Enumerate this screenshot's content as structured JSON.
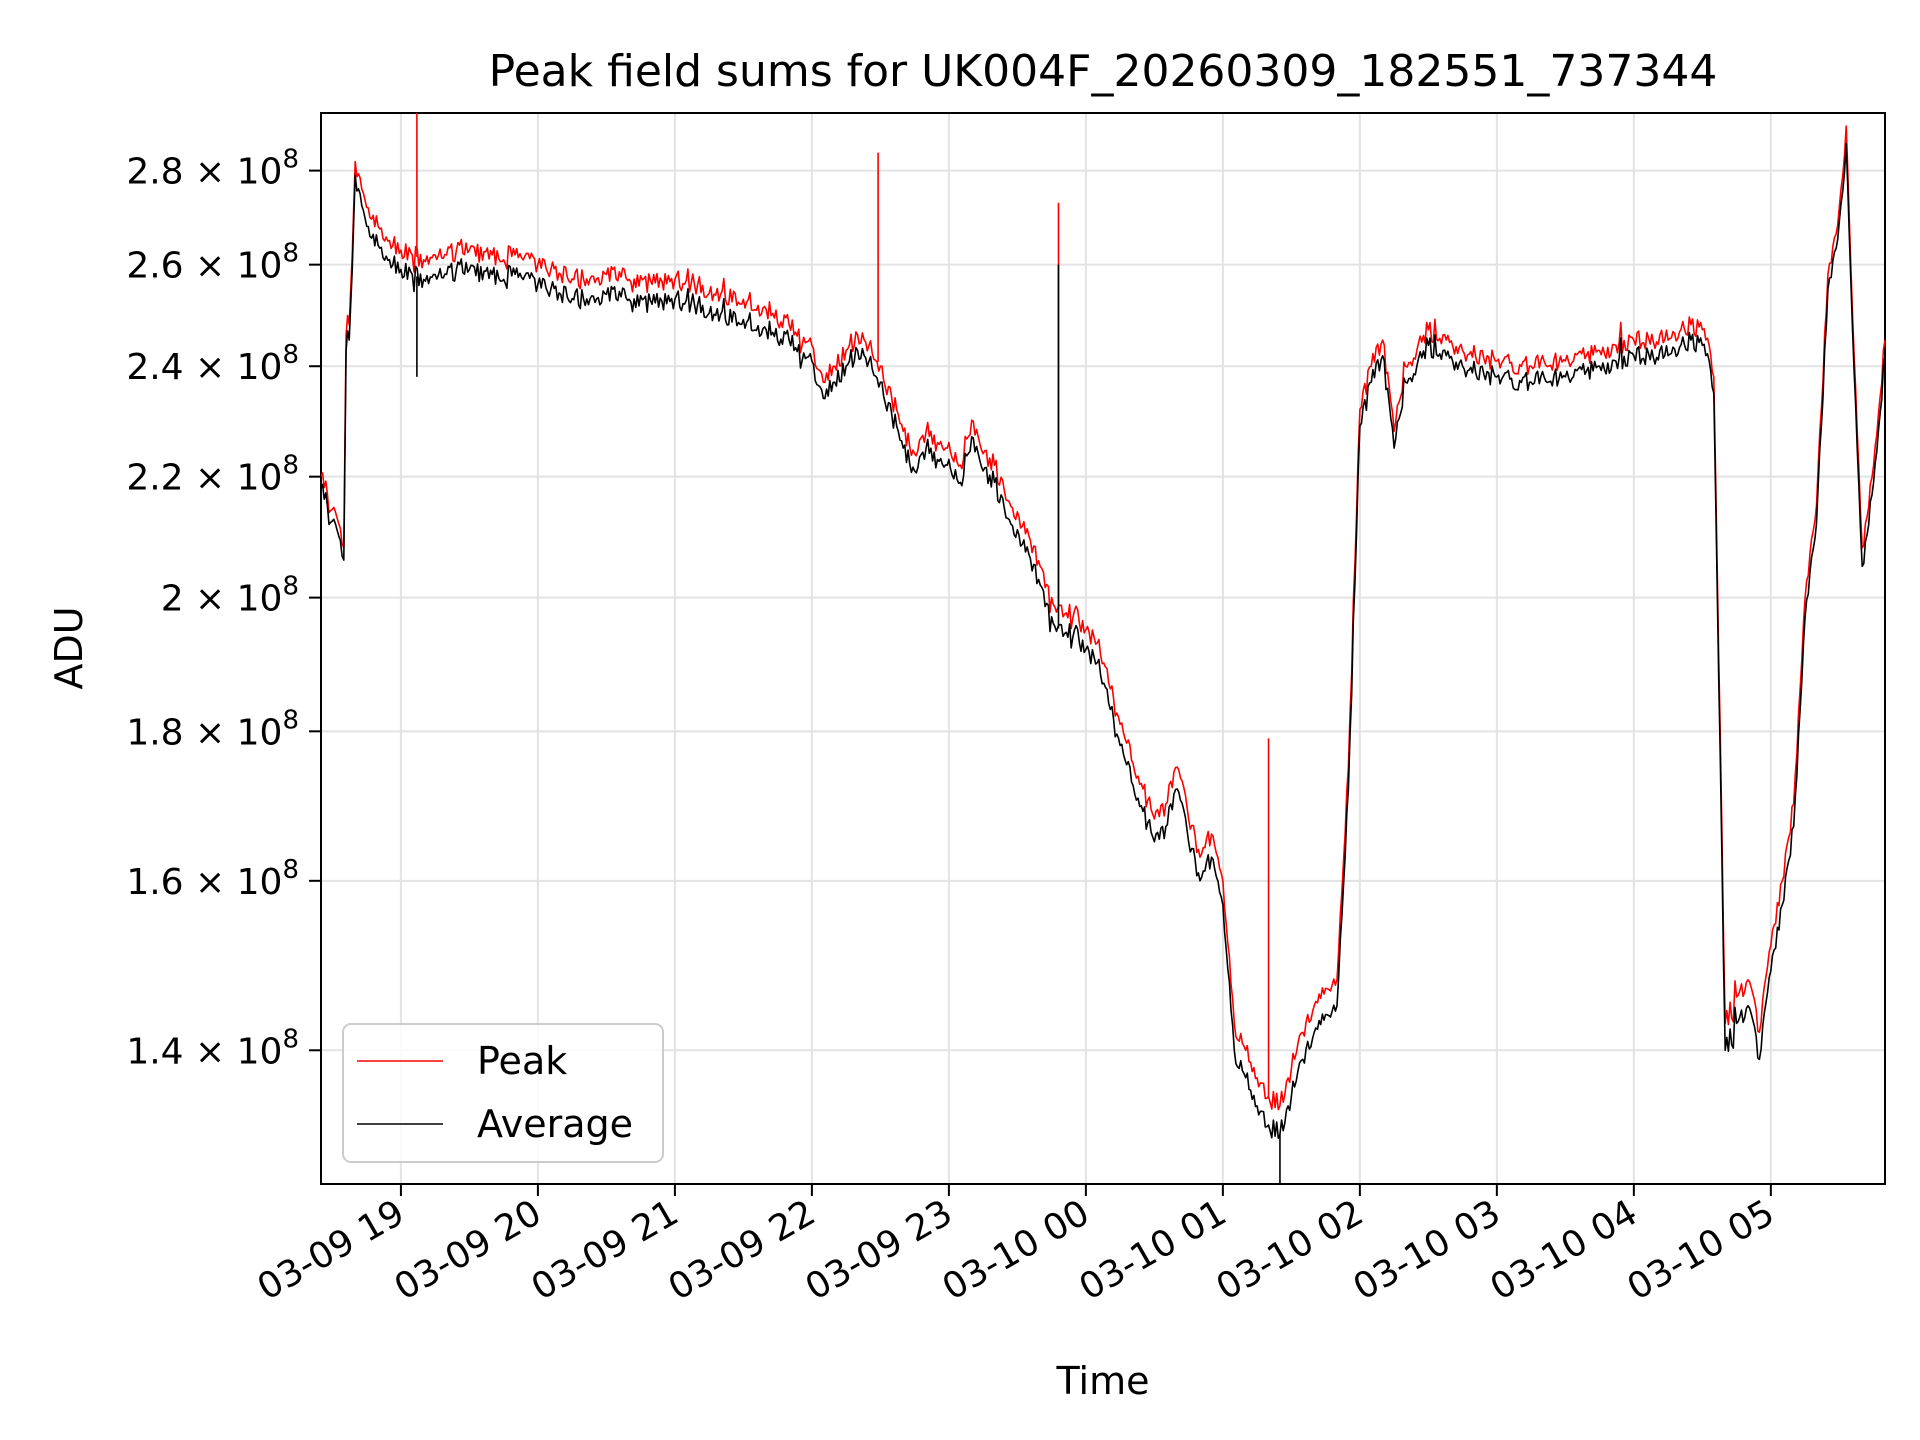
{
  "chart_data": {
    "type": "line",
    "title": "Peak field sums for UK004F_20260309_182551_737344",
    "xlabel": "Time",
    "ylabel": "ADU",
    "y_scale": "log",
    "grid": true,
    "legend_position": "lower-left",
    "xlim": [
      "2026-03-09 18:25",
      "2026-03-10 05:50"
    ],
    "ylim": [
      126000000,
      293000000
    ],
    "x_ticks": [
      {
        "value": "2026-03-09 19:00",
        "label": "03-09 19"
      },
      {
        "value": "2026-03-09 20:00",
        "label": "03-09 20"
      },
      {
        "value": "2026-03-09 21:00",
        "label": "03-09 21"
      },
      {
        "value": "2026-03-09 22:00",
        "label": "03-09 22"
      },
      {
        "value": "2026-03-09 23:00",
        "label": "03-09 23"
      },
      {
        "value": "2026-03-10 00:00",
        "label": "03-10 00"
      },
      {
        "value": "2026-03-10 01:00",
        "label": "03-10 01"
      },
      {
        "value": "2026-03-10 02:00",
        "label": "03-10 02"
      },
      {
        "value": "2026-03-10 03:00",
        "label": "03-10 03"
      },
      {
        "value": "2026-03-10 04:00",
        "label": "03-10 04"
      },
      {
        "value": "2026-03-10 05:00",
        "label": "03-10 05"
      }
    ],
    "y_ticks": [
      {
        "value": 140000000,
        "mantissa": "1.4",
        "base": "10",
        "exp": "8"
      },
      {
        "value": 160000000,
        "mantissa": "1.6",
        "base": "10",
        "exp": "8"
      },
      {
        "value": 180000000,
        "mantissa": "1.8",
        "base": "10",
        "exp": "8"
      },
      {
        "value": 200000000,
        "mantissa": "2",
        "base": "10",
        "exp": "8"
      },
      {
        "value": 220000000,
        "mantissa": "2.2",
        "base": "10",
        "exp": "8"
      },
      {
        "value": 240000000,
        "mantissa": "2.4",
        "base": "10",
        "exp": "8"
      },
      {
        "value": 260000000,
        "mantissa": "2.6",
        "base": "10",
        "exp": "8"
      },
      {
        "value": 280000000,
        "mantissa": "2.8",
        "base": "10",
        "exp": "8"
      }
    ],
    "series": [
      {
        "name": "Peak",
        "color": "#ff0000",
        "x": [
          "2026-03-09 18:25",
          "2026-03-09 18:32",
          "2026-03-09 18:35",
          "2026-03-09 18:36",
          "2026-03-09 18:38",
          "2026-03-09 18:40",
          "2026-03-09 18:45",
          "2026-03-09 18:50",
          "2026-03-09 18:55",
          "2026-03-09 19:00",
          "2026-03-09 19:05",
          "2026-03-09 19:10",
          "2026-03-09 19:20",
          "2026-03-09 19:30",
          "2026-03-09 19:40",
          "2026-03-09 19:50",
          "2026-03-09 20:00",
          "2026-03-09 20:10",
          "2026-03-09 20:20",
          "2026-03-09 20:30",
          "2026-03-09 20:40",
          "2026-03-09 20:50",
          "2026-03-09 21:00",
          "2026-03-09 21:10",
          "2026-03-09 21:20",
          "2026-03-09 21:30",
          "2026-03-09 21:40",
          "2026-03-09 21:50",
          "2026-03-09 22:00",
          "2026-03-09 22:05",
          "2026-03-09 22:10",
          "2026-03-09 22:15",
          "2026-03-09 22:20",
          "2026-03-09 22:25",
          "2026-03-09 22:30",
          "2026-03-09 22:35",
          "2026-03-09 22:40",
          "2026-03-09 22:45",
          "2026-03-09 22:50",
          "2026-03-09 22:55",
          "2026-03-09 23:00",
          "2026-03-09 23:05",
          "2026-03-09 23:10",
          "2026-03-09 23:15",
          "2026-03-09 23:20",
          "2026-03-09 23:25",
          "2026-03-09 23:30",
          "2026-03-09 23:35",
          "2026-03-09 23:40",
          "2026-03-09 23:45",
          "2026-03-09 23:50",
          "2026-03-09 23:55",
          "2026-03-10 00:00",
          "2026-03-10 00:05",
          "2026-03-10 00:10",
          "2026-03-10 00:15",
          "2026-03-10 00:20",
          "2026-03-10 00:25",
          "2026-03-10 00:30",
          "2026-03-10 00:35",
          "2026-03-10 00:40",
          "2026-03-10 00:45",
          "2026-03-10 00:50",
          "2026-03-10 00:55",
          "2026-03-10 01:00",
          "2026-03-10 01:05",
          "2026-03-10 01:10",
          "2026-03-10 01:15",
          "2026-03-10 01:20",
          "2026-03-10 01:25",
          "2026-03-10 01:30",
          "2026-03-10 01:35",
          "2026-03-10 01:40",
          "2026-03-10 01:45",
          "2026-03-10 01:50",
          "2026-03-10 01:55",
          "2026-03-10 02:00",
          "2026-03-10 02:05",
          "2026-03-10 02:10",
          "2026-03-10 02:15",
          "2026-03-10 02:20",
          "2026-03-10 02:30",
          "2026-03-10 02:45",
          "2026-03-10 03:00",
          "2026-03-10 03:15",
          "2026-03-10 03:30",
          "2026-03-10 03:45",
          "2026-03-10 04:00",
          "2026-03-10 04:15",
          "2026-03-10 04:25",
          "2026-03-10 04:30",
          "2026-03-10 04:33",
          "2026-03-10 04:35",
          "2026-03-10 04:40",
          "2026-03-10 04:45",
          "2026-03-10 04:50",
          "2026-03-10 04:55",
          "2026-03-10 05:00",
          "2026-03-10 05:05",
          "2026-03-10 05:10",
          "2026-03-10 05:15",
          "2026-03-10 05:20",
          "2026-03-10 05:25",
          "2026-03-10 05:30",
          "2026-03-10 05:33",
          "2026-03-10 05:35",
          "2026-03-10 05:40",
          "2026-03-10 05:45",
          "2026-03-10 05:50"
        ],
        "y": [
          220000000,
          213000000,
          208000000,
          246000000,
          255000000,
          282000000,
          272000000,
          268000000,
          265000000,
          263000000,
          262000000,
          261000000,
          262000000,
          263000000,
          262000000,
          262000000,
          260000000,
          258000000,
          257000000,
          258000000,
          257000000,
          256000000,
          257000000,
          256000000,
          254000000,
          253000000,
          251000000,
          248000000,
          244000000,
          237000000,
          240000000,
          243000000,
          246000000,
          244000000,
          240000000,
          234000000,
          228000000,
          224000000,
          228000000,
          226000000,
          226000000,
          222000000,
          230000000,
          224000000,
          222000000,
          216000000,
          214000000,
          210000000,
          205000000,
          200000000,
          197000000,
          198000000,
          195000000,
          193000000,
          187000000,
          181000000,
          176000000,
          172000000,
          168000000,
          170000000,
          175000000,
          168000000,
          163000000,
          166000000,
          160000000,
          143000000,
          140000000,
          137000000,
          135000000,
          134000000,
          138000000,
          142000000,
          145000000,
          147000000,
          148000000,
          175000000,
          232000000,
          240000000,
          245000000,
          228000000,
          240000000,
          247000000,
          243000000,
          241000000,
          240000000,
          241000000,
          243000000,
          245000000,
          245000000,
          248000000,
          247000000,
          244000000,
          238000000,
          143000000,
          146000000,
          148000000,
          142000000,
          152000000,
          160000000,
          170000000,
          200000000,
          215000000,
          258000000,
          272000000,
          290000000,
          260000000,
          208000000,
          222000000,
          245000000
        ],
        "spikes": [
          {
            "x": "2026-03-09 19:07",
            "y": 293000000
          },
          {
            "x": "2026-03-09 22:29",
            "y": 284000000
          },
          {
            "x": "2026-03-09 23:48",
            "y": 273000000
          },
          {
            "x": "2026-03-10 01:20",
            "y": 179000000
          }
        ]
      },
      {
        "name": "Average",
        "color": "#000000",
        "x": [
          "2026-03-09 18:25",
          "2026-03-09 18:32",
          "2026-03-09 18:35",
          "2026-03-09 18:36",
          "2026-03-09 18:38",
          "2026-03-09 18:40",
          "2026-03-09 18:45",
          "2026-03-09 18:50",
          "2026-03-09 18:55",
          "2026-03-09 19:00",
          "2026-03-09 19:05",
          "2026-03-09 19:10",
          "2026-03-09 19:20",
          "2026-03-09 19:30",
          "2026-03-09 19:40",
          "2026-03-09 19:50",
          "2026-03-09 20:00",
          "2026-03-09 20:10",
          "2026-03-09 20:20",
          "2026-03-09 20:30",
          "2026-03-09 20:40",
          "2026-03-09 20:50",
          "2026-03-09 21:00",
          "2026-03-09 21:10",
          "2026-03-09 21:20",
          "2026-03-09 21:30",
          "2026-03-09 21:40",
          "2026-03-09 21:50",
          "2026-03-09 22:00",
          "2026-03-09 22:05",
          "2026-03-09 22:10",
          "2026-03-09 22:15",
          "2026-03-09 22:20",
          "2026-03-09 22:25",
          "2026-03-09 22:30",
          "2026-03-09 22:35",
          "2026-03-09 22:40",
          "2026-03-09 22:45",
          "2026-03-09 22:50",
          "2026-03-09 22:55",
          "2026-03-09 23:00",
          "2026-03-09 23:05",
          "2026-03-09 23:10",
          "2026-03-09 23:15",
          "2026-03-09 23:20",
          "2026-03-09 23:25",
          "2026-03-09 23:30",
          "2026-03-09 23:35",
          "2026-03-09 23:40",
          "2026-03-09 23:45",
          "2026-03-09 23:50",
          "2026-03-09 23:55",
          "2026-03-10 00:00",
          "2026-03-10 00:05",
          "2026-03-10 00:10",
          "2026-03-10 00:15",
          "2026-03-10 00:20",
          "2026-03-10 00:25",
          "2026-03-10 00:30",
          "2026-03-10 00:35",
          "2026-03-10 00:40",
          "2026-03-10 00:45",
          "2026-03-10 00:50",
          "2026-03-10 00:55",
          "2026-03-10 01:00",
          "2026-03-10 01:05",
          "2026-03-10 01:10",
          "2026-03-10 01:15",
          "2026-03-10 01:20",
          "2026-03-10 01:25",
          "2026-03-10 01:30",
          "2026-03-10 01:35",
          "2026-03-10 01:40",
          "2026-03-10 01:45",
          "2026-03-10 01:50",
          "2026-03-10 01:55",
          "2026-03-10 02:00",
          "2026-03-10 02:05",
          "2026-03-10 02:10",
          "2026-03-10 02:15",
          "2026-03-10 02:20",
          "2026-03-10 02:30",
          "2026-03-10 02:45",
          "2026-03-10 03:00",
          "2026-03-10 03:15",
          "2026-03-10 03:30",
          "2026-03-10 03:45",
          "2026-03-10 04:00",
          "2026-03-10 04:15",
          "2026-03-10 04:25",
          "2026-03-10 04:30",
          "2026-03-10 04:33",
          "2026-03-10 04:35",
          "2026-03-10 04:40",
          "2026-03-10 04:45",
          "2026-03-10 04:50",
          "2026-03-10 04:55",
          "2026-03-10 05:00",
          "2026-03-10 05:05",
          "2026-03-10 05:10",
          "2026-03-10 05:15",
          "2026-03-10 05:20",
          "2026-03-10 05:25",
          "2026-03-10 05:30",
          "2026-03-10 05:33",
          "2026-03-10 05:35",
          "2026-03-10 05:40",
          "2026-03-10 05:45",
          "2026-03-10 05:50"
        ],
        "y": [
          218000000,
          211000000,
          206000000,
          243000000,
          252000000,
          279000000,
          268000000,
          264000000,
          261000000,
          259000000,
          258000000,
          257000000,
          258000000,
          259000000,
          258000000,
          258000000,
          256000000,
          254000000,
          253000000,
          254000000,
          253000000,
          252000000,
          253000000,
          252000000,
          250000000,
          249000000,
          247000000,
          245000000,
          241000000,
          234000000,
          237000000,
          240000000,
          243000000,
          241000000,
          237000000,
          231000000,
          225000000,
          221000000,
          225000000,
          223000000,
          223000000,
          219000000,
          227000000,
          221000000,
          219000000,
          213000000,
          211000000,
          207000000,
          202000000,
          197000000,
          194000000,
          195000000,
          192000000,
          190000000,
          184000000,
          178000000,
          173000000,
          169000000,
          165000000,
          167000000,
          172000000,
          165000000,
          160000000,
          163000000,
          157000000,
          140000000,
          137000000,
          134000000,
          132000000,
          131000000,
          135000000,
          139000000,
          142000000,
          144000000,
          145000000,
          172000000,
          229000000,
          237000000,
          242000000,
          225000000,
          237000000,
          244000000,
          240000000,
          238000000,
          237000000,
          238000000,
          240000000,
          242000000,
          242000000,
          245000000,
          244000000,
          241000000,
          235000000,
          140000000,
          143000000,
          145000000,
          139000000,
          149000000,
          157000000,
          167000000,
          197000000,
          212000000,
          255000000,
          269000000,
          286000000,
          257000000,
          205000000,
          219000000,
          242000000
        ],
        "spikes": [
          {
            "x": "2026-03-09 19:07",
            "y": 238000000
          },
          {
            "x": "2026-03-09 23:48",
            "y": 260000000
          },
          {
            "x": "2026-03-10 01:25",
            "y": 126000000
          }
        ]
      }
    ]
  }
}
